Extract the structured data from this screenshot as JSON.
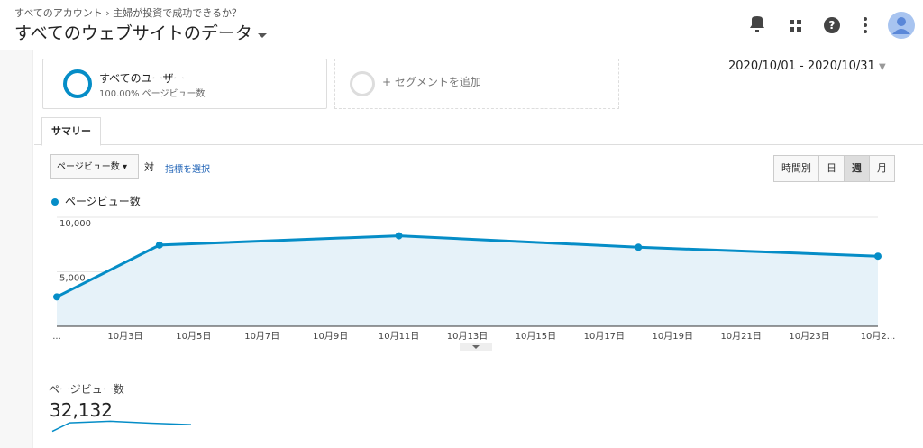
{
  "header": {
    "breadcrumb": [
      "すべてのアカウント",
      "主婦が投資で成功できるか？"
    ],
    "title": "すべてのウェブサイトのデータ"
  },
  "segments": [
    {
      "name": "すべてのユーザー",
      "detail": "100.00% ページビュー数"
    },
    {
      "name": "+ セグメントを追加"
    }
  ],
  "date_range": "2020/10/01 - 2020/10/31",
  "tabs": [
    "サマリー"
  ],
  "controls": {
    "metric_select": "ページビュー数",
    "versus": "対",
    "select_metric_link": "指標を選択",
    "granularity": [
      "時間別",
      "日",
      "週",
      "月"
    ],
    "active_granularity": 2
  },
  "chart_data": {
    "type": "line",
    "series": [
      {
        "name": "ページビュー数",
        "color": "#058dc7",
        "values": [
          2700,
          7450,
          8300,
          7250,
          6430
        ]
      }
    ],
    "x": [
      1,
      4,
      11,
      18,
      25
    ],
    "xlim": [
      1,
      25
    ],
    "xticks": [
      {
        "value": 1,
        "label": "..."
      },
      {
        "value": 3,
        "label": "10月3日"
      },
      {
        "value": 5,
        "label": "10月5日"
      },
      {
        "value": 7,
        "label": "10月7日"
      },
      {
        "value": 9,
        "label": "10月9日"
      },
      {
        "value": 11,
        "label": "10月11日"
      },
      {
        "value": 13,
        "label": "10月13日"
      },
      {
        "value": 15,
        "label": "10月15日"
      },
      {
        "value": 17,
        "label": "10月17日"
      },
      {
        "value": 19,
        "label": "10月19日"
      },
      {
        "value": 21,
        "label": "10月21日"
      },
      {
        "value": 23,
        "label": "10月23日"
      },
      {
        "value": 25,
        "label": "10月2..."
      }
    ],
    "ylim": [
      0,
      10000
    ],
    "yticks": [
      {
        "value": 5000,
        "label": "5,000"
      },
      {
        "value": 10000,
        "label": "10,000"
      }
    ],
    "grid": true,
    "area": true
  },
  "scorecard": {
    "label": "ページビュー数",
    "value": "32,132"
  }
}
